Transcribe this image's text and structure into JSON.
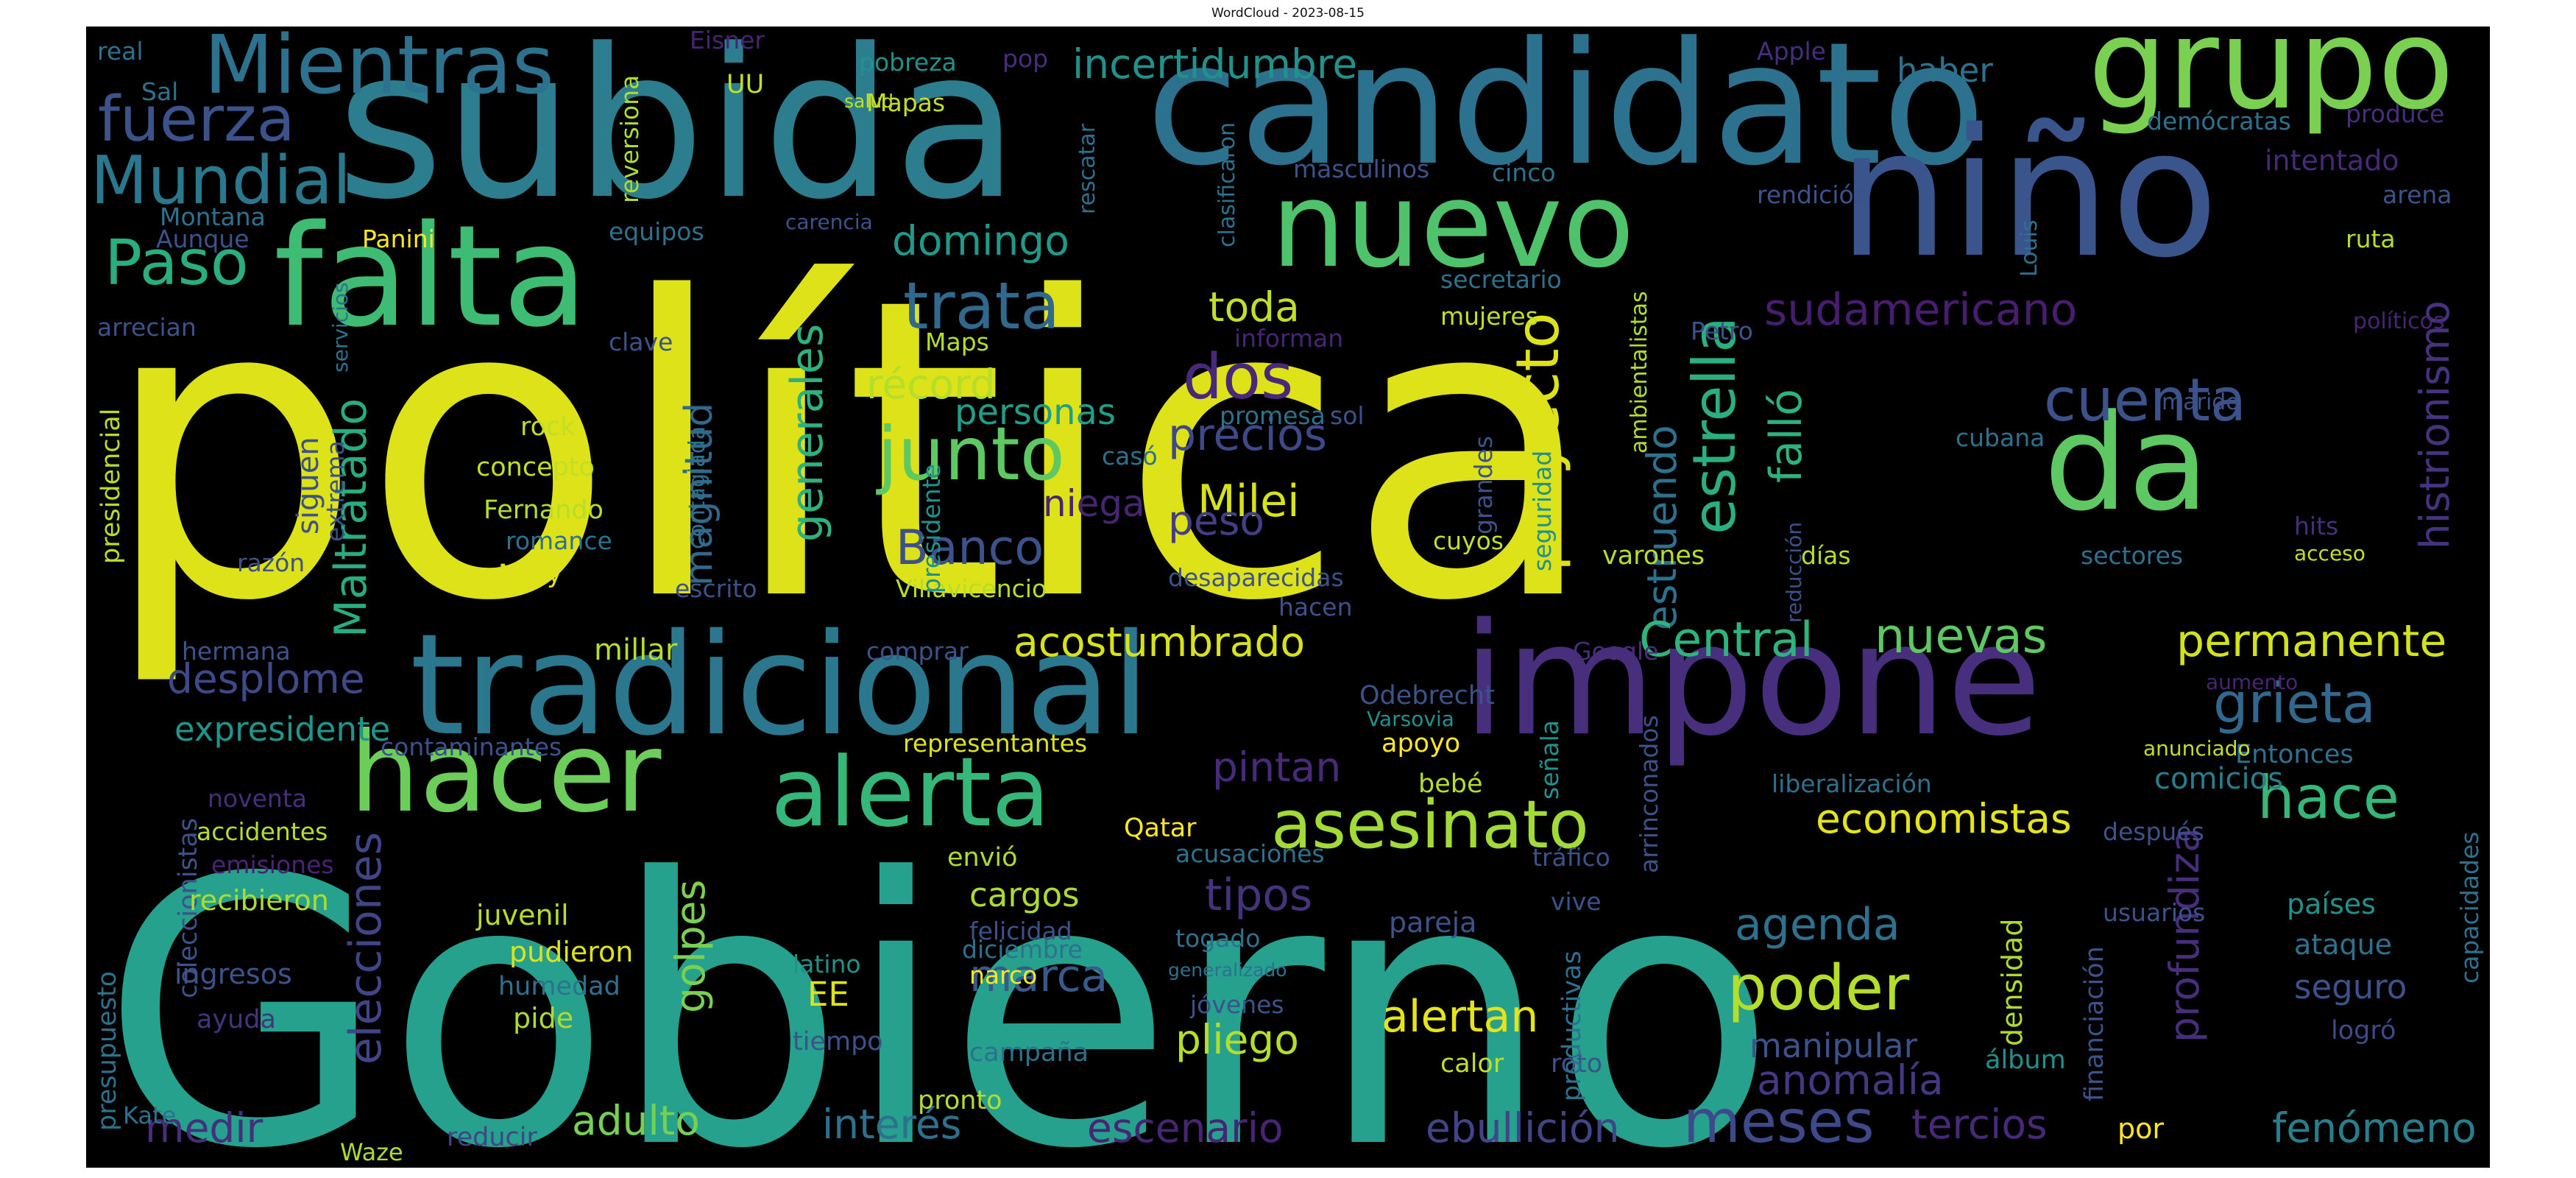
{
  "title": "WordCloud - 2023-08-15",
  "palette": [
    "#440154",
    "#472d7b",
    "#3b518b",
    "#2c718e",
    "#21908d",
    "#27ad81",
    "#5cc863",
    "#aadc32",
    "#fde725"
  ],
  "words": [
    {
      "text": "política",
      "color": "#dde318"
    },
    {
      "text": "Gobierno",
      "color": "#25a18e"
    },
    {
      "text": "subida",
      "color": "#2c7e8e"
    },
    {
      "text": "candidato",
      "color": "#2c728e"
    },
    {
      "text": "niño",
      "color": "#3a548c"
    },
    {
      "text": "impone",
      "color": "#472f7d"
    },
    {
      "text": "tradicional",
      "color": "#2a778e"
    },
    {
      "text": "grupo",
      "color": "#7ad151"
    },
    {
      "text": "falta",
      "color": "#3fbc73"
    },
    {
      "text": "nuevo",
      "color": "#4ec36b"
    },
    {
      "text": "da",
      "color": "#5ec962"
    },
    {
      "text": "hacer",
      "color": "#6ccd5a"
    },
    {
      "text": "alerta",
      "color": "#35b779"
    },
    {
      "text": "asesinato",
      "color": "#a2da37"
    },
    {
      "text": "Mientras",
      "color": "#2c728e"
    },
    {
      "text": "fuerza",
      "color": "#3b528b"
    },
    {
      "text": "Mundial",
      "color": "#2a788e"
    },
    {
      "text": "Paso",
      "color": "#29af7f"
    },
    {
      "text": "trata",
      "color": "#31688e"
    },
    {
      "text": "domingo",
      "color": "#1f9a8a"
    },
    {
      "text": "toda",
      "color": "#c0df25"
    },
    {
      "text": "junto",
      "color": "#5ec962"
    },
    {
      "text": "dos",
      "color": "#482878"
    },
    {
      "text": "récord",
      "color": "#b5de2b"
    },
    {
      "text": "precios",
      "color": "#3e4989"
    },
    {
      "text": "Milei",
      "color": "#d8e219"
    },
    {
      "text": "Banco",
      "color": "#3b528b"
    },
    {
      "text": "peso",
      "color": "#433e85"
    },
    {
      "text": "personas",
      "color": "#1f9e89"
    },
    {
      "text": "niega",
      "color": "#482475"
    },
    {
      "text": "magnitud",
      "color": "#31688e"
    },
    {
      "text": "generales",
      "color": "#2db27d"
    },
    {
      "text": "Maltratado",
      "color": "#27ad81"
    },
    {
      "text": "proyecto",
      "color": "#dde318"
    },
    {
      "text": "estrella",
      "color": "#2ab07f"
    },
    {
      "text": "falló",
      "color": "#2db27d"
    },
    {
      "text": "estruendo",
      "color": "#2c728e"
    },
    {
      "text": "cuenta",
      "color": "#3b528b"
    },
    {
      "text": "sudamericano",
      "color": "#481c6e"
    },
    {
      "text": "histrionismo",
      "color": "#46337e"
    },
    {
      "text": "Central",
      "color": "#2eb37c"
    },
    {
      "text": "nuevas",
      "color": "#5ec962"
    },
    {
      "text": "permanente",
      "color": "#d2e21b"
    },
    {
      "text": "grieta",
      "color": "#31688e"
    },
    {
      "text": "hace",
      "color": "#35b779"
    },
    {
      "text": "economistas",
      "color": "#e5e419"
    },
    {
      "text": "comicios",
      "color": "#277f8e"
    },
    {
      "text": "incertidumbre",
      "color": "#21918c"
    },
    {
      "text": "haber",
      "color": "#2c728e"
    },
    {
      "text": "desplome",
      "color": "#3e4989"
    },
    {
      "text": "expresidente",
      "color": "#1f968b"
    },
    {
      "text": "acostumbrado",
      "color": "#d8e219"
    },
    {
      "text": "pintan",
      "color": "#472a7a"
    },
    {
      "text": "elecciones",
      "color": "#414487"
    },
    {
      "text": "golpes",
      "color": "#7ad151"
    },
    {
      "text": "cargos",
      "color": "#addc30"
    },
    {
      "text": "tipos",
      "color": "#46337e"
    },
    {
      "text": "marca",
      "color": "#38598c"
    },
    {
      "text": "poder",
      "color": "#b5de2b"
    },
    {
      "text": "agenda",
      "color": "#2c728e"
    },
    {
      "text": "alertan",
      "color": "#e5e419"
    },
    {
      "text": "profundiza",
      "color": "#472d7b"
    },
    {
      "text": "meses",
      "color": "#3e4989"
    },
    {
      "text": "tercios",
      "color": "#482878"
    },
    {
      "text": "fenómeno",
      "color": "#277f8e"
    },
    {
      "text": "anomalía",
      "color": "#453781"
    },
    {
      "text": "manipular",
      "color": "#3b528b"
    },
    {
      "text": "escenario",
      "color": "#482475"
    },
    {
      "text": "ebullición",
      "color": "#414487"
    },
    {
      "text": "interés",
      "color": "#2c728e"
    },
    {
      "text": "adulto",
      "color": "#75d054"
    },
    {
      "text": "medir",
      "color": "#472d7b"
    },
    {
      "text": "pliego",
      "color": "#b5de2b"
    },
    {
      "text": "EE",
      "color": "#dde318"
    },
    {
      "text": "seguro",
      "color": "#3b528b"
    },
    {
      "text": "ataque",
      "color": "#2c728e"
    },
    {
      "text": "países",
      "color": "#21918c"
    },
    {
      "text": "logró",
      "color": "#3e4989"
    },
    {
      "text": "densidad",
      "color": "#addc30"
    },
    {
      "text": "álbum",
      "color": "#21918c"
    },
    {
      "text": "financiación",
      "color": "#3b528b"
    },
    {
      "text": "por",
      "color": "#fde725"
    },
    {
      "text": "Kate",
      "color": "#2c728e"
    },
    {
      "text": "presupuesto",
      "color": "#2c728e"
    },
    {
      "text": "coleccionistas",
      "color": "#3b528b"
    },
    {
      "text": "presidencial",
      "color": "#b5de2b"
    },
    {
      "text": "Waze",
      "color": "#addc30"
    },
    {
      "text": "reducir",
      "color": "#414487"
    },
    {
      "text": "pronto",
      "color": "#b5de2b"
    },
    {
      "text": "campaña",
      "color": "#2c728e"
    },
    {
      "text": "calor",
      "color": "#c0df25"
    },
    {
      "text": "roto",
      "color": "#3b528b"
    },
    {
      "text": "productivas",
      "color": "#2c728e"
    },
    {
      "text": "tiempo",
      "color": "#3b528b"
    },
    {
      "text": "pide",
      "color": "#addc30"
    },
    {
      "text": "humedad",
      "color": "#2c728e"
    },
    {
      "text": "pudieron",
      "color": "#dde318"
    },
    {
      "text": "juvenil",
      "color": "#b5de2b"
    },
    {
      "text": "ingresos",
      "color": "#3b528b"
    },
    {
      "text": "ayuda",
      "color": "#46337e"
    },
    {
      "text": "recibieron",
      "color": "#addc30"
    },
    {
      "text": "emisiones",
      "color": "#482475"
    },
    {
      "text": "accidentes",
      "color": "#b5de2b"
    },
    {
      "text": "noventa",
      "color": "#472d7b"
    },
    {
      "text": "contaminantes",
      "color": "#3b528b"
    },
    {
      "text": "representantes",
      "color": "#dde318"
    },
    {
      "text": "Qatar",
      "color": "#fde725"
    },
    {
      "text": "envió",
      "color": "#addc30"
    },
    {
      "text": "acusaciones",
      "color": "#2c728e"
    },
    {
      "text": "felicidad",
      "color": "#3b528b"
    },
    {
      "text": "diciembre",
      "color": "#2c728e"
    },
    {
      "text": "narco",
      "color": "#fde725"
    },
    {
      "text": "latino",
      "color": "#21918c"
    },
    {
      "text": "togado",
      "color": "#2c728e"
    },
    {
      "text": "generalizado",
      "color": "#2c728e"
    },
    {
      "text": "jóvenes",
      "color": "#3b528b"
    },
    {
      "text": "pareja",
      "color": "#3b528b"
    },
    {
      "text": "vive",
      "color": "#3b528b"
    },
    {
      "text": "tráfico",
      "color": "#3b528b"
    },
    {
      "text": "bebé",
      "color": "#b5de2b"
    },
    {
      "text": "apoyo",
      "color": "#fde725"
    },
    {
      "text": "señala",
      "color": "#21918c"
    },
    {
      "text": "arrinconados",
      "color": "#3b528b"
    },
    {
      "text": "liberalización",
      "color": "#2c728e"
    },
    {
      "text": "usuarios",
      "color": "#3b528b"
    },
    {
      "text": "después",
      "color": "#3b528b"
    },
    {
      "text": "Entonces",
      "color": "#2c728e"
    },
    {
      "text": "anunciado",
      "color": "#c0df25"
    },
    {
      "text": "capacidades",
      "color": "#2c728e"
    },
    {
      "text": "aumento",
      "color": "#482475"
    },
    {
      "text": "Odebrecht",
      "color": "#3b528b"
    },
    {
      "text": "Varsovia",
      "color": "#21918c"
    },
    {
      "text": "Google",
      "color": "#472d7b"
    },
    {
      "text": "comprar",
      "color": "#3b528b"
    },
    {
      "text": "millar",
      "color": "#b5de2b"
    },
    {
      "text": "hermana",
      "color": "#3b528b"
    },
    {
      "text": "Villavicencio",
      "color": "#b5de2b"
    },
    {
      "text": "escrito",
      "color": "#3b528b"
    },
    {
      "text": "desaparecidas",
      "color": "#3b528b"
    },
    {
      "text": "hacen",
      "color": "#3b528b"
    },
    {
      "text": "cuyos",
      "color": "#c0df25"
    },
    {
      "text": "varones",
      "color": "#b5de2b"
    },
    {
      "text": "seguridad",
      "color": "#21918c"
    },
    {
      "text": "grandes",
      "color": "#3b528b"
    },
    {
      "text": "sol",
      "color": "#3b528b"
    },
    {
      "text": "promesa",
      "color": "#2c728e"
    },
    {
      "text": "casó",
      "color": "#2c728e"
    },
    {
      "text": "presidente",
      "color": "#21918c"
    },
    {
      "text": "contagiada",
      "color": "#2c728e"
    },
    {
      "text": "romance",
      "color": "#2c728e"
    },
    {
      "text": "Fernando",
      "color": "#b5de2b"
    },
    {
      "text": "concepto",
      "color": "#c0df25"
    },
    {
      "text": "Mary",
      "color": "#dde318"
    },
    {
      "text": "rock",
      "color": "#c0df25"
    },
    {
      "text": "UU",
      "color": "#c0df25"
    },
    {
      "text": "siguen",
      "color": "#3b528b"
    },
    {
      "text": "extrema",
      "color": "#3b528b"
    },
    {
      "text": "razón",
      "color": "#3b528b"
    },
    {
      "text": "arrecian",
      "color": "#3b528b"
    },
    {
      "text": "servicios",
      "color": "#2c728e"
    },
    {
      "text": "Panini",
      "color": "#fde725"
    },
    {
      "text": "Aunque",
      "color": "#3b528b"
    },
    {
      "text": "Montana",
      "color": "#2c728e"
    },
    {
      "text": "equipos",
      "color": "#2c728e"
    },
    {
      "text": "carencia",
      "color": "#3b528b"
    },
    {
      "text": "clave",
      "color": "#3b528b"
    },
    {
      "text": "Maps",
      "color": "#b5de2b"
    },
    {
      "text": "informan",
      "color": "#482475"
    },
    {
      "text": "mujeres",
      "color": "#c0df25"
    },
    {
      "text": "secretario",
      "color": "#2c728e"
    },
    {
      "text": "ambientalistas",
      "color": "#b5de2b"
    },
    {
      "text": "Petro",
      "color": "#3b528b"
    },
    {
      "text": "reducción",
      "color": "#3b528b"
    },
    {
      "text": "días",
      "color": "#b5de2b"
    },
    {
      "text": "masculinos",
      "color": "#3b528b"
    },
    {
      "text": "cinco",
      "color": "#2c728e"
    },
    {
      "text": "clasificaron",
      "color": "#2c728e"
    },
    {
      "text": "rescatar",
      "color": "#2c728e"
    },
    {
      "text": "pop",
      "color": "#472d7b"
    },
    {
      "text": "pobreza",
      "color": "#21918c"
    },
    {
      "text": "Mapas",
      "color": "#c0df25"
    },
    {
      "text": "salud",
      "color": "#c0df25"
    },
    {
      "text": "reversiona",
      "color": "#addc30"
    },
    {
      "text": "Eisner",
      "color": "#482475"
    },
    {
      "text": "Sal",
      "color": "#2c728e"
    },
    {
      "text": "real",
      "color": "#2c728e"
    },
    {
      "text": "Apple",
      "color": "#472d7b"
    },
    {
      "text": "demócratas",
      "color": "#2c728e"
    },
    {
      "text": "produce",
      "color": "#472d7b"
    },
    {
      "text": "intentado",
      "color": "#482878"
    },
    {
      "text": "rendición",
      "color": "#3b528b"
    },
    {
      "text": "arena",
      "color": "#3b528b"
    },
    {
      "text": "ruta",
      "color": "#b5de2b"
    },
    {
      "text": "Louis",
      "color": "#2c728e"
    },
    {
      "text": "políticos",
      "color": "#482475"
    },
    {
      "text": "marido",
      "color": "#3b528b"
    },
    {
      "text": "cubana",
      "color": "#2c728e"
    },
    {
      "text": "hits",
      "color": "#472d7b"
    },
    {
      "text": "acceso",
      "color": "#c0df25"
    },
    {
      "text": "sectores",
      "color": "#2c728e"
    }
  ]
}
